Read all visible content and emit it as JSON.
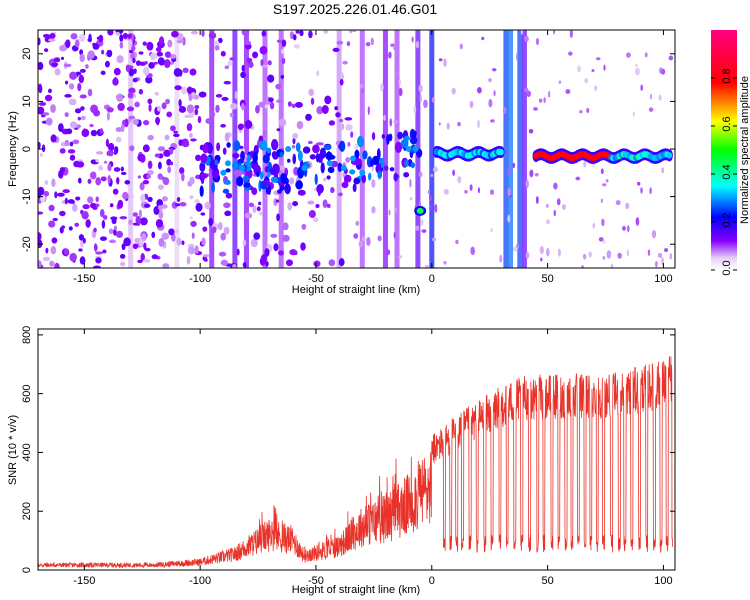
{
  "title": "S197.2025.226.01.46.G01",
  "colors": {
    "snr_line": "#e8332a",
    "axis": "#000000",
    "background": "#ffffff"
  },
  "chart_data": [
    {
      "type": "heatmap",
      "xlabel": "Height of straight line (km)",
      "ylabel": "Frequency (Hz)",
      "xlim": [
        -170,
        105
      ],
      "ylim": [
        -25,
        25
      ],
      "xticks": [
        -150,
        -100,
        -50,
        0,
        50,
        100
      ],
      "xtick_labels": [
        "-150",
        "-100",
        "-50",
        "0",
        "50",
        "100"
      ],
      "yticks": [
        -20,
        -10,
        0,
        10,
        20
      ],
      "ytick_labels": [
        "-20",
        "-10",
        "0",
        "10",
        "20"
      ],
      "colorbar": {
        "label": "Normalized spectral amplitude",
        "range": [
          0.0,
          1.0
        ],
        "ticks": [
          0.0,
          0.2,
          0.4,
          0.6,
          0.8
        ],
        "tick_labels": [
          "0.0",
          "0.2",
          "0.4",
          "0.6",
          "0.8"
        ],
        "colormap": "rainbow"
      },
      "features": [
        {
          "name": "noise-left",
          "x_range": [
            -170,
            -100
          ],
          "y_range": [
            -25,
            25
          ],
          "amplitude": 0.15
        },
        {
          "name": "cluster-main",
          "x_range": [
            -100,
            -40
          ],
          "y_range": [
            -8,
            2
          ],
          "amplitude": 0.3
        },
        {
          "name": "signal-band-1",
          "x_range": [
            2,
            30
          ],
          "y_center": -1,
          "amplitude": 0.5
        },
        {
          "name": "signal-band-2",
          "x_range": [
            45,
            100
          ],
          "y_center": -1.5,
          "amplitude": 0.8
        },
        {
          "name": "blob-low",
          "x_range": [
            -8,
            -2
          ],
          "y_center": -13,
          "amplitude": 0.45
        }
      ]
    },
    {
      "type": "line",
      "xlabel": "Height of straight line (km)",
      "ylabel": "SNR (10 * v/v)",
      "xlim": [
        -170,
        105
      ],
      "ylim": [
        0,
        820
      ],
      "xticks": [
        -150,
        -100,
        -50,
        0,
        50,
        100
      ],
      "xtick_labels": [
        "-150",
        "-100",
        "-50",
        "0",
        "50",
        "100"
      ],
      "yticks": [
        0,
        200,
        400,
        600,
        800
      ],
      "ytick_labels": [
        "0",
        "200",
        "400",
        "600",
        "800"
      ],
      "series": [
        {
          "name": "SNR",
          "envelope": [
            {
              "x": -170,
              "y": 25
            },
            {
              "x": -120,
              "y": 25
            },
            {
              "x": -100,
              "y": 40
            },
            {
              "x": -85,
              "y": 80
            },
            {
              "x": -70,
              "y": 180
            },
            {
              "x": -60,
              "y": 150
            },
            {
              "x": -55,
              "y": 70
            },
            {
              "x": -40,
              "y": 120
            },
            {
              "x": -30,
              "y": 220
            },
            {
              "x": -20,
              "y": 260
            },
            {
              "x": -10,
              "y": 330
            },
            {
              "x": 0,
              "y": 430
            },
            {
              "x": 10,
              "y": 490
            },
            {
              "x": 20,
              "y": 540
            },
            {
              "x": 30,
              "y": 590
            },
            {
              "x": 40,
              "y": 620
            },
            {
              "x": 60,
              "y": 625
            },
            {
              "x": 80,
              "y": 630
            },
            {
              "x": 100,
              "y": 670
            },
            {
              "x": 105,
              "y": 700
            }
          ]
        }
      ]
    }
  ]
}
